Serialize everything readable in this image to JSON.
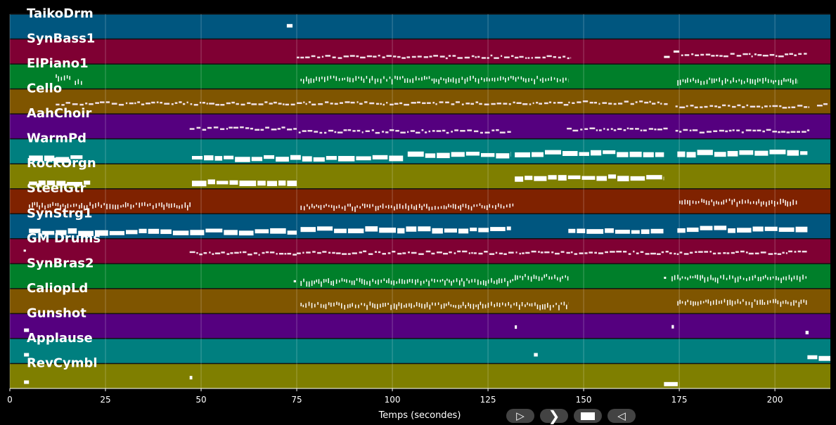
{
  "chart_data": {
    "type": "piano-roll",
    "xlabel": "Temps (secondes)",
    "xlim": [
      0,
      214.5
    ],
    "xticks": [
      0,
      25,
      50,
      75,
      100,
      125,
      150,
      175,
      200
    ],
    "grid": true,
    "tracks": [
      {
        "name": "TaikoDrm",
        "color": "#00567f",
        "style": "block",
        "phrases": [
          [
            72.4,
            73.9
          ]
        ]
      },
      {
        "name": "SynBass1",
        "color": "#7f0033",
        "style": "sparse",
        "phrases": [
          [
            75,
            146.7
          ],
          [
            171,
            172.5
          ],
          [
            173.5,
            175
          ],
          [
            175.5,
            208.5
          ]
        ]
      },
      {
        "name": "ElPiano1",
        "color": "#007f2a",
        "style": "dense",
        "phrases": [
          [
            12,
            16
          ],
          [
            17,
            19
          ],
          [
            76,
            146
          ],
          [
            174.5,
            206
          ]
        ]
      },
      {
        "name": "Cello",
        "color": "#7f5500",
        "style": "sparse",
        "phrases": [
          [
            12,
            75
          ],
          [
            75,
            146
          ],
          [
            146,
            172
          ],
          [
            174,
            209
          ],
          [
            211,
            214
          ]
        ]
      },
      {
        "name": "AahChoir",
        "color": "#55007f",
        "style": "sparse",
        "phrases": [
          [
            47,
            75
          ],
          [
            75.5,
            131
          ],
          [
            145.6,
            172
          ],
          [
            174,
            209
          ]
        ]
      },
      {
        "name": "WarmPd",
        "color": "#007f7f",
        "style": "block",
        "phrases": [
          [
            5,
            19
          ],
          [
            47.6,
            103
          ],
          [
            104,
            131
          ],
          [
            132,
            171
          ],
          [
            174.5,
            208.5
          ]
        ]
      },
      {
        "name": "RockOrgn",
        "color": "#7f7f00",
        "style": "block",
        "phrases": [
          [
            5,
            21
          ],
          [
            47.6,
            75
          ],
          [
            132,
            171
          ]
        ]
      },
      {
        "name": "SteelGtr",
        "color": "#7f2200",
        "style": "dense",
        "phrases": [
          [
            5,
            47.6
          ],
          [
            76,
            132
          ],
          [
            175,
            206
          ]
        ]
      },
      {
        "name": "SynStrg1",
        "color": "#00567f",
        "style": "block",
        "phrases": [
          [
            5,
            75
          ],
          [
            76,
            131
          ],
          [
            146,
            171
          ],
          [
            174.5,
            208.5
          ]
        ]
      },
      {
        "name": "GM Drums",
        "color": "#7f0033",
        "style": "sparse",
        "phrases": [
          [
            3.6,
            4.2
          ],
          [
            47,
            75
          ],
          [
            75,
            208.5
          ]
        ]
      },
      {
        "name": "SynBras2",
        "color": "#007f2a",
        "style": "dense",
        "phrases": [
          [
            74.2,
            74.8
          ],
          [
            76,
            132
          ],
          [
            132,
            146
          ],
          [
            171,
            171.5
          ],
          [
            173,
            208.5
          ]
        ]
      },
      {
        "name": "CaliopLd",
        "color": "#7f5500",
        "style": "dense",
        "phrases": [
          [
            76,
            146
          ],
          [
            174.5,
            208.5
          ]
        ]
      },
      {
        "name": "Gunshot",
        "color": "#55007f",
        "style": "block",
        "phrases": [
          [
            3.7,
            5
          ],
          [
            132,
            132.4
          ],
          [
            173,
            173.6
          ],
          [
            208,
            208.8
          ]
        ]
      },
      {
        "name": "Applause",
        "color": "#007f7f",
        "style": "block",
        "phrases": [
          [
            3.7,
            5
          ],
          [
            137,
            138
          ],
          [
            208.5,
            214.5
          ]
        ]
      },
      {
        "name": "RevCymbl",
        "color": "#7f7f00",
        "style": "block",
        "phrases": [
          [
            3.7,
            5
          ],
          [
            47,
            47.7
          ],
          [
            171,
            175
          ]
        ]
      }
    ]
  },
  "controls": {
    "back": "ᐅ",
    "play": "ᐳ",
    "stop": "■",
    "forward": "ᐊ"
  }
}
